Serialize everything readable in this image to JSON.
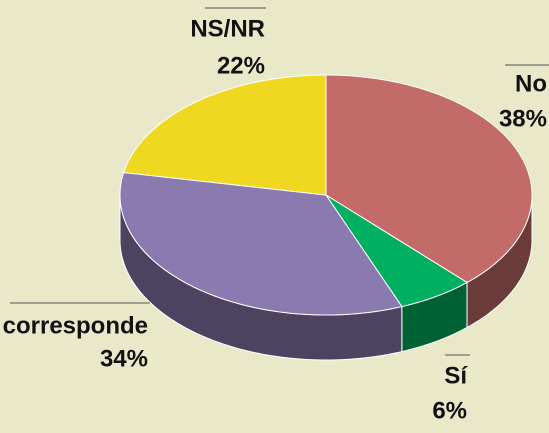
{
  "chart_data": {
    "type": "pie3d",
    "categories": [
      "No",
      "Sí",
      "No corresponde",
      "NS/NR"
    ],
    "values": [
      38,
      6,
      34,
      22
    ],
    "value_labels": [
      "38%",
      "6%",
      "34%",
      "22%"
    ],
    "colors": [
      "#c26b68",
      "#00b060",
      "#8a7ab0",
      "#f0d820"
    ]
  }
}
